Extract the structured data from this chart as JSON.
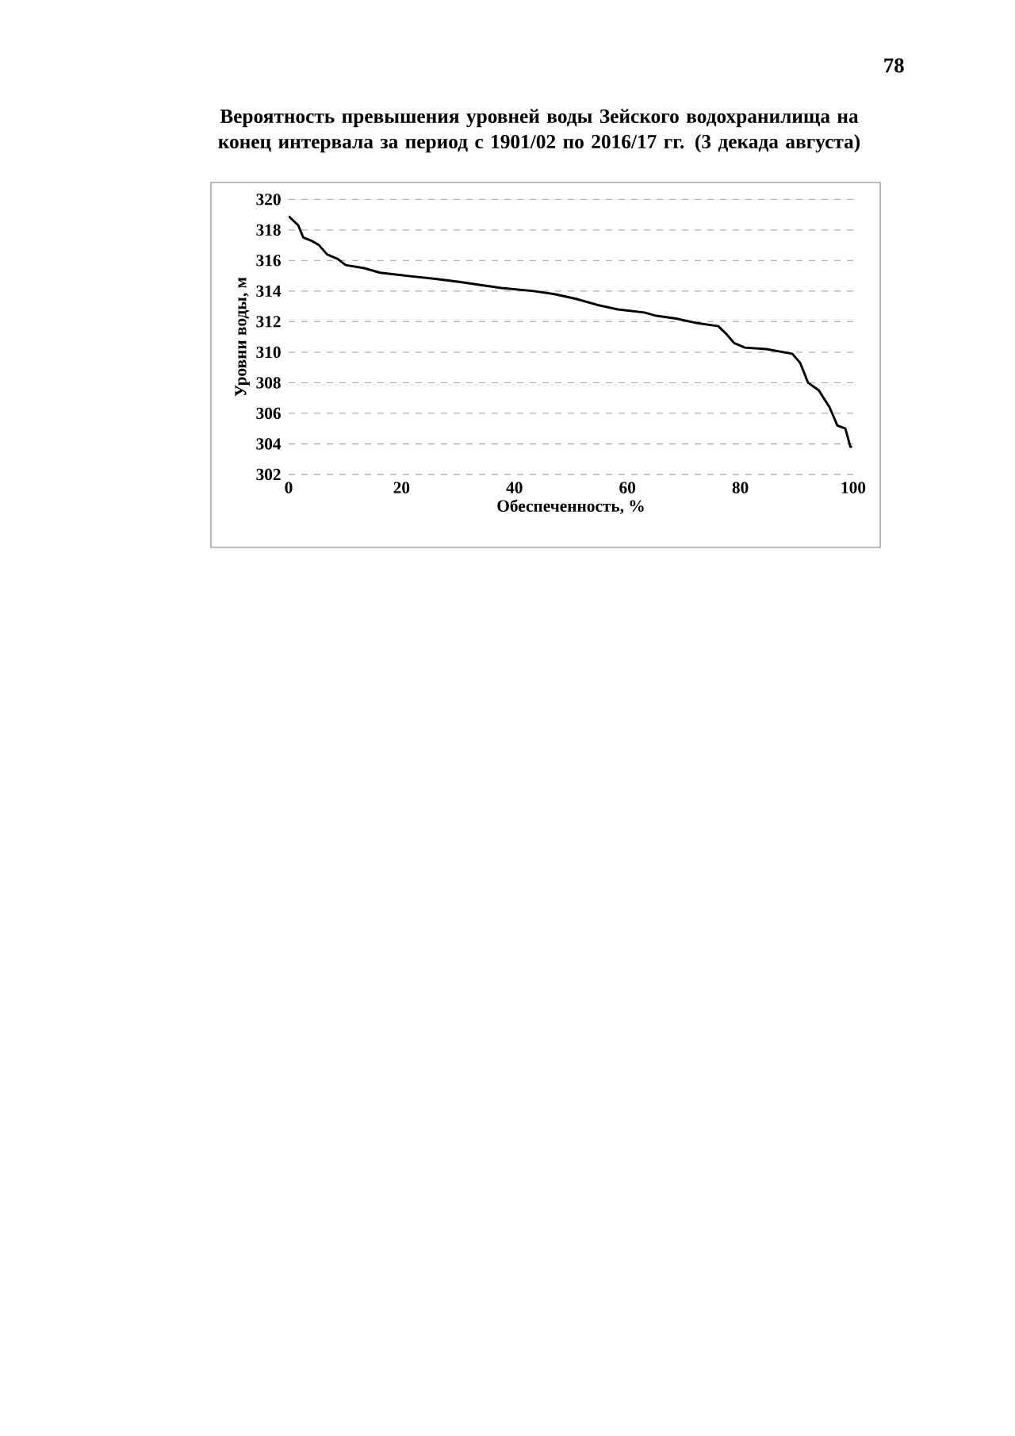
{
  "chart_data": {
    "type": "line",
    "title": "Вероятность превышения уровней воды Зейского водохранилища на конец интервала за период с 1901/02 по 2016/17 гг. (3 декада августа)",
    "xlabel": "Обеспеченность, %",
    "ylabel": "Уровни воды, м",
    "annotations": [
      "78"
    ],
    "series": [
      {
        "color": "#000000",
        "x": [
          0,
          1.7,
          2.6,
          4.0,
          5.4,
          6.8,
          8.7,
          10.1,
          13.4,
          16.2,
          20.9,
          26.0,
          30.2,
          34,
          37.7,
          43.4,
          47.1,
          50.8,
          54.6,
          58.3,
          63,
          64.9,
          68.6,
          72.4,
          76.1,
          77.5,
          78.9,
          80.8,
          84.6,
          89.2,
          90.6,
          92.0,
          93.9,
          95.8,
          97.2,
          98.6,
          99.5,
          99.8
        ],
        "values": [
          318.9,
          318.3,
          317.5,
          317.3,
          317.0,
          316.4,
          316.1,
          315.7,
          315.5,
          315.2,
          315.0,
          314.8,
          314.6,
          314.4,
          314.2,
          314.0,
          313.8,
          313.5,
          313.1,
          312.8,
          312.6,
          312.4,
          312.2,
          311.9,
          311.7,
          311.2,
          310.6,
          310.3,
          310.2,
          309.9,
          309.3,
          308.0,
          307.5,
          306.4,
          305.2,
          305.0,
          303.8,
          303.8
        ]
      }
    ],
    "xlim": [
      0,
      100
    ],
    "xticks": [
      0,
      20,
      40,
      60,
      80,
      100
    ],
    "ylim": [
      302,
      320
    ],
    "yticks": [
      302,
      304,
      306,
      308,
      310,
      312,
      314,
      316,
      318,
      320
    ],
    "grid": "y",
    "marker": "none",
    "line_style": "solid"
  }
}
